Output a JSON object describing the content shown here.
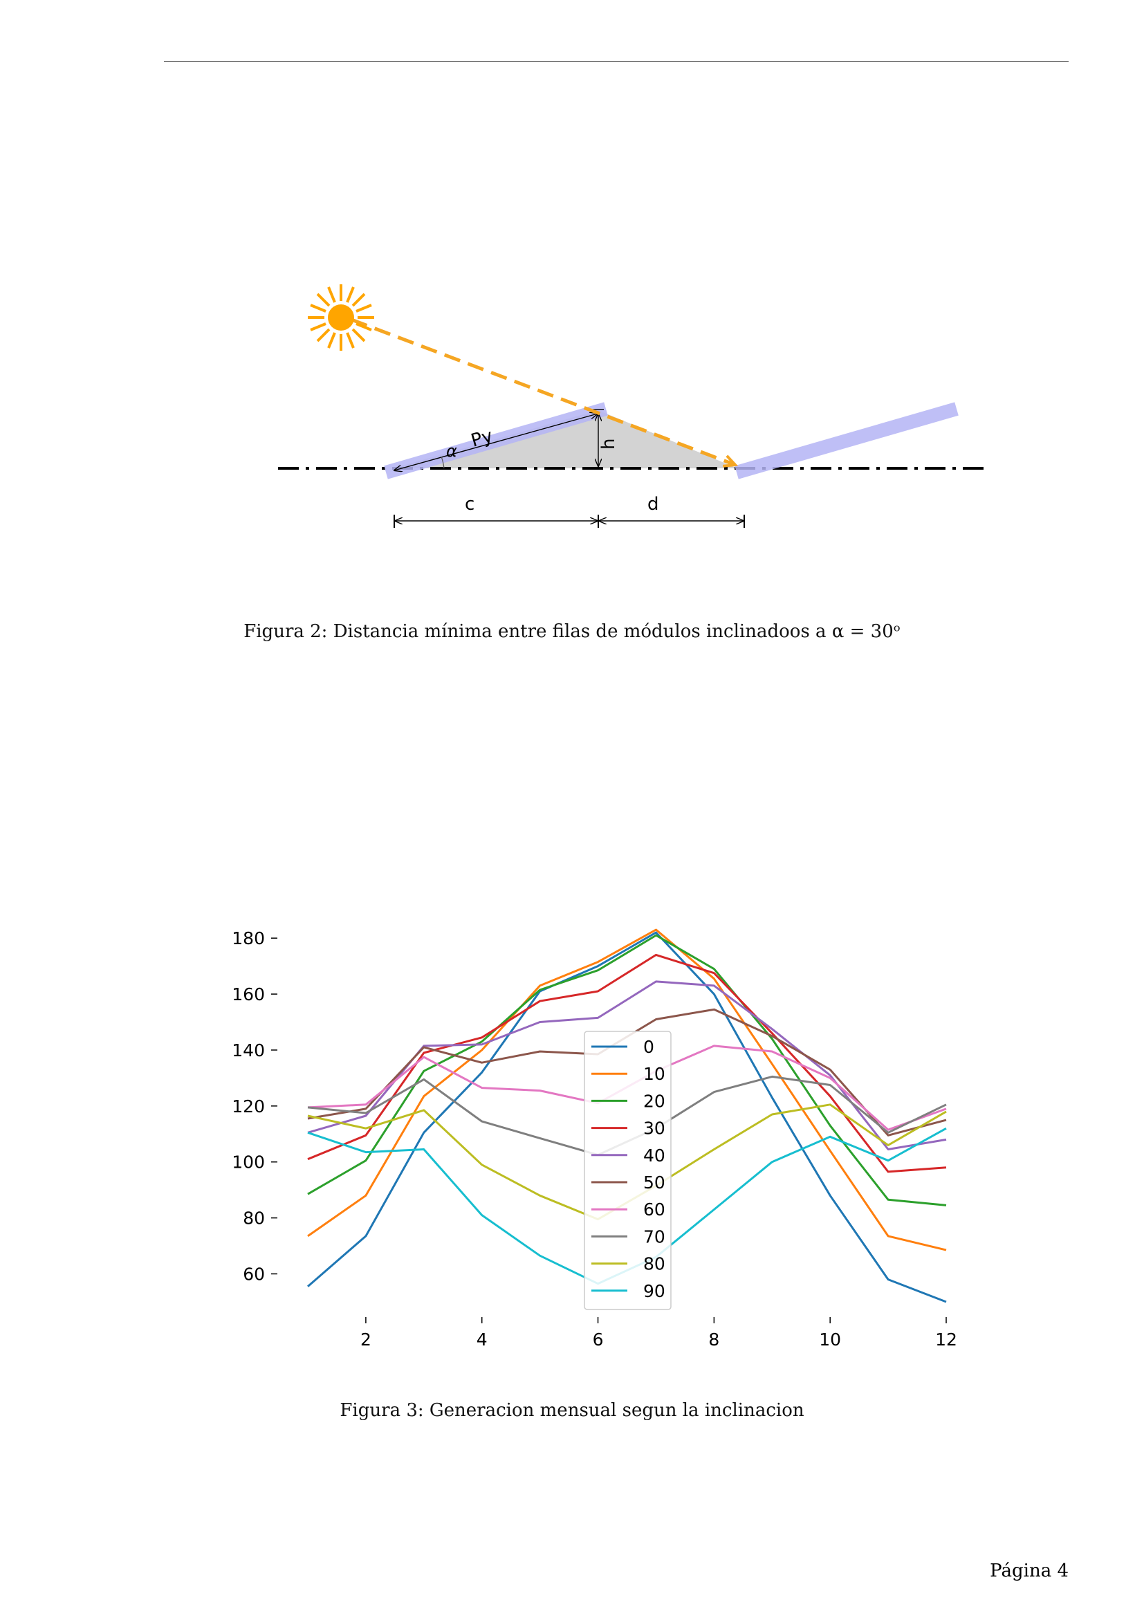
{
  "figure2": {
    "caption": "Figura 2: Distancia mínima entre filas de módulos inclinadoos a α = 30ᵒ",
    "labels": {
      "py": "Py",
      "alpha": "α",
      "h": "h",
      "c": "c",
      "d": "d"
    },
    "colors": {
      "sun": "#FFA500",
      "ray": "#F5A623",
      "panel": "#B4B4F5",
      "shadow": "#CCCCCC",
      "ground": "#000000"
    },
    "icon": "sun-icon"
  },
  "figure3": {
    "caption": "Figura 3: Generacion mensual segun la inclinacion"
  },
  "chart_data": {
    "type": "line",
    "title": "",
    "xlabel": "",
    "ylabel": "",
    "x": [
      1,
      2,
      3,
      4,
      5,
      6,
      7,
      8,
      9,
      10,
      11,
      12
    ],
    "xticks": [
      "2",
      "4",
      "6",
      "8",
      "10",
      "12"
    ],
    "xtick_values": [
      2,
      4,
      6,
      8,
      10,
      12
    ],
    "yticks": [
      "60",
      "80",
      "100",
      "120",
      "140",
      "160",
      "180"
    ],
    "ytick_values": [
      60,
      80,
      100,
      120,
      140,
      160,
      180
    ],
    "xlim": [
      1,
      12
    ],
    "ylim": [
      49,
      184
    ],
    "grid": false,
    "legend_placement": "center",
    "series": [
      {
        "name": "0",
        "color": "#1f77b4",
        "values": [
          55.5,
          73.5,
          110.5,
          132,
          161,
          170,
          182,
          160,
          123,
          88,
          58,
          50
        ]
      },
      {
        "name": "10",
        "color": "#ff7f0e",
        "values": [
          73.5,
          88,
          123.5,
          140,
          163,
          171.5,
          183,
          165.5,
          135,
          104,
          73.5,
          68.5
        ]
      },
      {
        "name": "20",
        "color": "#2ca02c",
        "values": [
          88.5,
          100.5,
          132.5,
          143,
          161.5,
          168.5,
          181,
          169,
          144,
          113,
          86.5,
          84.5
        ]
      },
      {
        "name": "30",
        "color": "#d62728",
        "values": [
          101,
          109.5,
          139,
          144.5,
          157.5,
          161,
          174,
          167.5,
          146,
          123.5,
          96.5,
          98
        ]
      },
      {
        "name": "40",
        "color": "#9467bd",
        "values": [
          110.5,
          116.5,
          141.5,
          142,
          150,
          151.5,
          164.5,
          163,
          147.5,
          131,
          104.5,
          108
        ]
      },
      {
        "name": "50",
        "color": "#8c564b",
        "values": [
          115.5,
          119,
          141,
          135.5,
          139.5,
          138.5,
          151,
          154.5,
          145,
          133,
          109.5,
          115
        ]
      },
      {
        "name": "60",
        "color": "#e377c2",
        "values": [
          119.5,
          120.5,
          137.5,
          126.5,
          125.5,
          121,
          132.5,
          141.5,
          139.5,
          130,
          111.5,
          119
        ]
      },
      {
        "name": "70",
        "color": "#7f7f7f",
        "values": [
          119.5,
          117.5,
          129.5,
          114.5,
          108.5,
          102.5,
          112,
          125,
          130.5,
          127.5,
          110.5,
          120.5
        ]
      },
      {
        "name": "80",
        "color": "#bcbd22",
        "values": [
          116.5,
          112,
          118.5,
          99,
          88,
          79.5,
          91.5,
          104.5,
          117,
          120.5,
          106,
          118
        ]
      },
      {
        "name": "90",
        "color": "#17becf",
        "values": [
          110.5,
          103.5,
          104.5,
          81,
          66.5,
          56.5,
          66,
          83,
          100,
          109,
          100.5,
          112
        ]
      }
    ]
  },
  "page": {
    "number_label": "Página 4"
  }
}
